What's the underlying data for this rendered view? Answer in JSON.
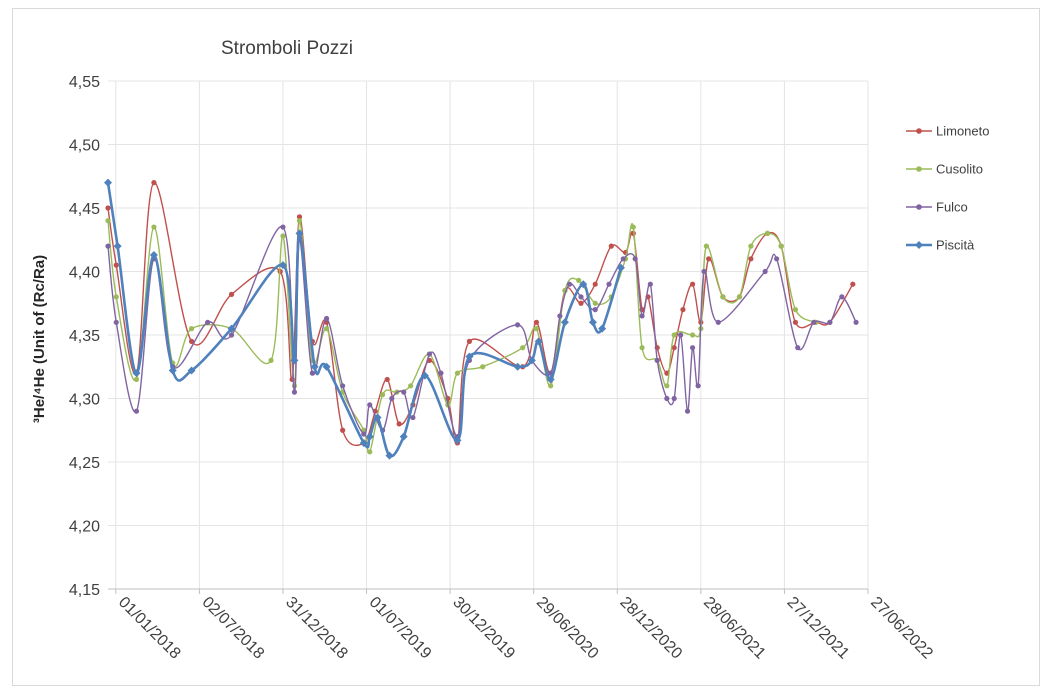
{
  "chart_data": {
    "type": "line",
    "title": "Stromboli Pozzi",
    "ylabel": "³He/⁴He (Unit of (Rc/Ra)",
    "xlabel": "",
    "ylim": [
      4.15,
      4.55
    ],
    "ytick_labels": [
      "4,15",
      "4,20",
      "4,25",
      "4,30",
      "4,35",
      "4,40",
      "4,45",
      "4,50",
      "4,55"
    ],
    "ytick_values": [
      4.15,
      4.2,
      4.25,
      4.3,
      4.35,
      4.4,
      4.45,
      4.5,
      4.55
    ],
    "xlim": [
      "2017-12-15",
      "2022-06-27"
    ],
    "xtick_labels": [
      "01/01/2018",
      "02/07/2018",
      "31/12/2018",
      "01/07/2019",
      "30/12/2019",
      "29/06/2020",
      "28/12/2020",
      "28/06/2021",
      "27/12/2021",
      "27/06/2022"
    ],
    "xtick_dates": [
      "2018-01-01",
      "2018-07-02",
      "2018-12-31",
      "2019-07-01",
      "2019-12-30",
      "2020-06-29",
      "2020-12-28",
      "2021-06-28",
      "2021-12-27",
      "2022-06-27"
    ],
    "grid": true,
    "legend_position": "right",
    "series": [
      {
        "name": "Limoneto",
        "color": "#c0504d",
        "marker": "circle",
        "points": [
          [
            "2017-12-15",
            4.45
          ],
          [
            "2018-01-02",
            4.405
          ],
          [
            "2018-02-15",
            4.32
          ],
          [
            "2018-03-25",
            4.47
          ],
          [
            "2018-06-15",
            4.345
          ],
          [
            "2018-09-10",
            4.382
          ],
          [
            "2018-12-25",
            4.4
          ],
          [
            "2019-01-20",
            4.315
          ],
          [
            "2019-02-05",
            4.443
          ],
          [
            "2019-03-05",
            4.345
          ],
          [
            "2019-04-05",
            4.36
          ],
          [
            "2019-05-10",
            4.275
          ],
          [
            "2019-06-25",
            4.265
          ],
          [
            "2019-07-20",
            4.29
          ],
          [
            "2019-08-15",
            4.315
          ],
          [
            "2019-09-10",
            4.28
          ],
          [
            "2019-10-10",
            4.295
          ],
          [
            "2019-11-15",
            4.33
          ],
          [
            "2019-12-25",
            4.3
          ],
          [
            "2020-01-15",
            4.265
          ],
          [
            "2020-02-10",
            4.345
          ],
          [
            "2020-06-05",
            4.325
          ],
          [
            "2020-07-05",
            4.36
          ],
          [
            "2020-08-05",
            4.32
          ],
          [
            "2020-09-05",
            4.385
          ],
          [
            "2020-10-10",
            4.375
          ],
          [
            "2020-11-10",
            4.39
          ],
          [
            "2020-12-15",
            4.42
          ],
          [
            "2021-01-15",
            4.415
          ],
          [
            "2021-02-01",
            4.43
          ],
          [
            "2021-02-20",
            4.37
          ],
          [
            "2021-03-05",
            4.38
          ],
          [
            "2021-03-25",
            4.34
          ],
          [
            "2021-04-15",
            4.32
          ],
          [
            "2021-05-01",
            4.34
          ],
          [
            "2021-05-20",
            4.37
          ],
          [
            "2021-06-10",
            4.39
          ],
          [
            "2021-06-28",
            4.36
          ],
          [
            "2021-07-15",
            4.41
          ],
          [
            "2021-08-15",
            4.38
          ],
          [
            "2021-09-20",
            4.38
          ],
          [
            "2021-10-15",
            4.41
          ],
          [
            "2021-11-20",
            4.43
          ],
          [
            "2021-12-20",
            4.42
          ],
          [
            "2022-01-20",
            4.36
          ],
          [
            "2022-03-05",
            4.36
          ],
          [
            "2022-04-05",
            4.36
          ],
          [
            "2022-05-25",
            4.39
          ]
        ]
      },
      {
        "name": "Cusolito",
        "color": "#9bbb59",
        "marker": "circle",
        "points": [
          [
            "2017-12-15",
            4.44
          ],
          [
            "2018-01-02",
            4.38
          ],
          [
            "2018-02-15",
            4.315
          ],
          [
            "2018-03-25",
            4.435
          ],
          [
            "2018-05-05",
            4.328
          ],
          [
            "2018-06-15",
            4.355
          ],
          [
            "2018-09-10",
            4.355
          ],
          [
            "2018-12-05",
            4.33
          ],
          [
            "2018-12-31",
            4.428
          ],
          [
            "2019-01-25",
            4.31
          ],
          [
            "2019-02-05",
            4.44
          ],
          [
            "2019-03-05",
            4.33
          ],
          [
            "2019-04-05",
            4.355
          ],
          [
            "2019-05-10",
            4.305
          ],
          [
            "2019-06-25",
            4.275
          ],
          [
            "2019-07-08",
            4.258
          ],
          [
            "2019-08-05",
            4.303
          ],
          [
            "2019-09-05",
            4.305
          ],
          [
            "2019-10-05",
            4.31
          ],
          [
            "2019-11-15",
            4.335
          ],
          [
            "2019-12-25",
            4.295
          ],
          [
            "2020-01-15",
            4.32
          ],
          [
            "2020-03-10",
            4.325
          ],
          [
            "2020-06-05",
            4.34
          ],
          [
            "2020-07-05",
            4.355
          ],
          [
            "2020-08-05",
            4.31
          ],
          [
            "2020-09-05",
            4.385
          ],
          [
            "2020-10-05",
            4.393
          ],
          [
            "2020-11-10",
            4.375
          ],
          [
            "2020-12-15",
            4.38
          ],
          [
            "2021-01-15",
            4.41
          ],
          [
            "2021-02-01",
            4.435
          ],
          [
            "2021-02-20",
            4.34
          ],
          [
            "2021-03-25",
            4.33
          ],
          [
            "2021-04-15",
            4.31
          ],
          [
            "2021-05-01",
            4.35
          ],
          [
            "2021-06-10",
            4.35
          ],
          [
            "2021-06-28",
            4.355
          ],
          [
            "2021-07-10",
            4.42
          ],
          [
            "2021-08-15",
            4.38
          ],
          [
            "2021-09-20",
            4.38
          ],
          [
            "2021-10-15",
            4.42
          ],
          [
            "2021-11-20",
            4.43
          ],
          [
            "2021-12-20",
            4.42
          ],
          [
            "2022-01-20",
            4.37
          ],
          [
            "2022-03-05",
            4.36
          ]
        ]
      },
      {
        "name": "Fulco",
        "color": "#8064a2",
        "marker": "circle",
        "points": [
          [
            "2017-12-15",
            4.42
          ],
          [
            "2018-01-02",
            4.36
          ],
          [
            "2018-02-15",
            4.29
          ],
          [
            "2018-03-25",
            4.41
          ],
          [
            "2018-05-05",
            4.325
          ],
          [
            "2018-07-20",
            4.36
          ],
          [
            "2018-09-10",
            4.35
          ],
          [
            "2018-12-31",
            4.435
          ],
          [
            "2019-01-25",
            4.305
          ],
          [
            "2019-02-05",
            4.425
          ],
          [
            "2019-03-05",
            4.32
          ],
          [
            "2019-04-05",
            4.363
          ],
          [
            "2019-05-10",
            4.31
          ],
          [
            "2019-06-25",
            4.272
          ],
          [
            "2019-07-08",
            4.295
          ],
          [
            "2019-08-05",
            4.275
          ],
          [
            "2019-08-25",
            4.3
          ],
          [
            "2019-09-20",
            4.305
          ],
          [
            "2019-10-10",
            4.285
          ],
          [
            "2019-11-15",
            4.335
          ],
          [
            "2019-12-10",
            4.32
          ],
          [
            "2020-01-15",
            4.27
          ],
          [
            "2020-02-10",
            4.33
          ],
          [
            "2020-05-25",
            4.358
          ],
          [
            "2020-06-25",
            4.33
          ],
          [
            "2020-08-05",
            4.32
          ],
          [
            "2020-08-25",
            4.365
          ],
          [
            "2020-09-15",
            4.39
          ],
          [
            "2020-10-10",
            4.38
          ],
          [
            "2020-11-10",
            4.37
          ],
          [
            "2020-12-10",
            4.39
          ],
          [
            "2021-01-10",
            4.41
          ],
          [
            "2021-02-05",
            4.41
          ],
          [
            "2021-02-20",
            4.365
          ],
          [
            "2021-03-10",
            4.39
          ],
          [
            "2021-03-25",
            4.33
          ],
          [
            "2021-04-15",
            4.3
          ],
          [
            "2021-05-01",
            4.3
          ],
          [
            "2021-05-15",
            4.35
          ],
          [
            "2021-05-30",
            4.29
          ],
          [
            "2021-06-10",
            4.34
          ],
          [
            "2021-06-22",
            4.31
          ],
          [
            "2021-07-05",
            4.4
          ],
          [
            "2021-08-05",
            4.36
          ],
          [
            "2021-11-15",
            4.4
          ],
          [
            "2021-12-10",
            4.41
          ],
          [
            "2022-01-25",
            4.34
          ],
          [
            "2022-03-01",
            4.36
          ],
          [
            "2022-04-05",
            4.36
          ],
          [
            "2022-05-01",
            4.38
          ],
          [
            "2022-06-01",
            4.36
          ]
        ]
      },
      {
        "name": "Piscità",
        "color": "#4f81bd",
        "marker": "diamond",
        "points": [
          [
            "2017-12-15",
            4.47
          ],
          [
            "2018-01-05",
            4.42
          ],
          [
            "2018-02-15",
            4.32
          ],
          [
            "2018-03-25",
            4.413
          ],
          [
            "2018-05-05",
            4.322
          ],
          [
            "2018-06-15",
            4.322
          ],
          [
            "2018-09-10",
            4.355
          ],
          [
            "2018-12-31",
            4.405
          ],
          [
            "2019-01-25",
            4.33
          ],
          [
            "2019-02-05",
            4.43
          ],
          [
            "2019-03-10",
            4.325
          ],
          [
            "2019-04-05",
            4.325
          ],
          [
            "2019-06-25",
            4.265
          ],
          [
            "2019-07-08",
            4.27
          ],
          [
            "2019-07-25",
            4.285
          ],
          [
            "2019-08-20",
            4.255
          ],
          [
            "2019-09-20",
            4.27
          ],
          [
            "2019-11-05",
            4.318
          ],
          [
            "2020-01-15",
            4.267
          ],
          [
            "2020-02-10",
            4.333
          ],
          [
            "2020-05-25",
            4.325
          ],
          [
            "2020-06-25",
            4.33
          ],
          [
            "2020-07-10",
            4.345
          ],
          [
            "2020-08-05",
            4.315
          ],
          [
            "2020-09-05",
            4.36
          ],
          [
            "2020-10-15",
            4.39
          ],
          [
            "2020-11-05",
            4.36
          ],
          [
            "2020-11-25",
            4.355
          ],
          [
            "2021-01-05",
            4.403
          ]
        ]
      }
    ]
  }
}
